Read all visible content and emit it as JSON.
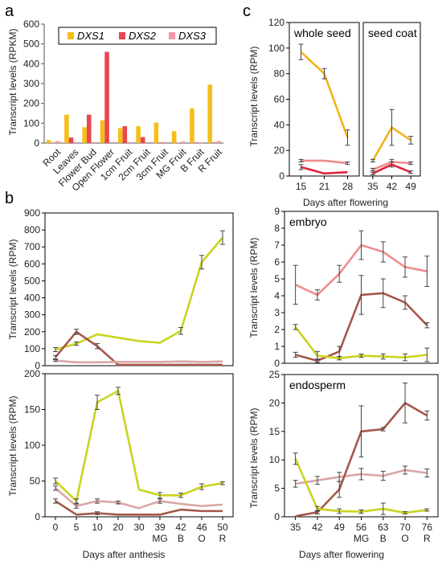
{
  "panel_labels": [
    "a",
    "b",
    "c"
  ],
  "colors": {
    "DXS1_a": "#F5BE19",
    "DXS2_a": "#E8474F",
    "DXS3_a": "#F29AA6",
    "yellow": "#C9D41E",
    "gold": "#F2B31B",
    "brown": "#A5584A",
    "pink": "#EF8C8C",
    "lightpink": "#D9A6A6",
    "red": "#E0243A"
  },
  "chart_data": [
    {
      "id": "a",
      "type": "bar",
      "ylabel": "Transcript levels (RPKM)",
      "ylim": [
        0,
        600
      ],
      "yticks": [
        0,
        100,
        200,
        300,
        400,
        500,
        600
      ],
      "legend_position": "top",
      "categories": [
        "Root",
        "Leaves",
        "Flower Bud",
        "Open Flower",
        "1cm Fruit",
        "2cm Fruit",
        "3cm Fruit",
        "MG Fruit",
        "B Fruit",
        "R Fruit"
      ],
      "series": [
        {
          "name": "DXS1",
          "color": "#F5BE19",
          "values": [
            15,
            143,
            80,
            115,
            75,
            85,
            103,
            60,
            175,
            295
          ]
        },
        {
          "name": "DXS2",
          "color": "#E8474F",
          "values": [
            2,
            28,
            143,
            460,
            85,
            30,
            3,
            1,
            3,
            3
          ]
        },
        {
          "name": "DXS3",
          "color": "#F29AA6",
          "values": [
            10,
            5,
            5,
            5,
            5,
            5,
            5,
            8,
            3,
            10
          ]
        }
      ]
    },
    {
      "id": "b_top",
      "type": "line",
      "ylim": [
        0,
        900
      ],
      "yticks": [
        0,
        100,
        200,
        300,
        400,
        500,
        600,
        700,
        800,
        900
      ],
      "x_labels": [
        "0",
        "5",
        "10",
        "20",
        "30",
        "39",
        "42",
        "46",
        "50"
      ],
      "x_sublabels": [
        "",
        "",
        "",
        "",
        "",
        "MG",
        "B",
        "O",
        "R"
      ],
      "series": [
        {
          "color": "#C9D41E",
          "values": [
            95,
            130,
            185,
            165,
            145,
            135,
            205,
            610,
            755
          ],
          "err": [
            12,
            10,
            0,
            0,
            0,
            0,
            20,
            40,
            40
          ]
        },
        {
          "color": "#A5584A",
          "values": [
            50,
            200,
            115,
            5,
            5,
            5,
            5,
            5,
            5
          ],
          "err": [
            10,
            15,
            15,
            0,
            0,
            0,
            0,
            0,
            0
          ]
        },
        {
          "color": "#D9A6A6",
          "values": [
            30,
            20,
            20,
            22,
            22,
            22,
            25,
            22,
            25
          ],
          "err": [
            5,
            0,
            0,
            0,
            0,
            0,
            0,
            0,
            0
          ]
        }
      ]
    },
    {
      "id": "b_bottom",
      "type": "line",
      "ylim": [
        0,
        200
      ],
      "yticks": [
        0,
        50,
        100,
        150,
        200
      ],
      "xlabel": "Days after anthesis",
      "x_labels": [
        "0",
        "5",
        "10",
        "20",
        "30",
        "39",
        "42",
        "46",
        "50"
      ],
      "x_sublabels": [
        "",
        "",
        "",
        "",
        "",
        "MG",
        "B",
        "O",
        "R"
      ],
      "series": [
        {
          "color": "#C9D41E",
          "values": [
            50,
            22,
            160,
            176,
            38,
            30,
            30,
            42,
            47
          ],
          "err": [
            4,
            3,
            10,
            5,
            0,
            4,
            3,
            4,
            2
          ]
        },
        {
          "color": "#A5584A",
          "values": [
            22,
            3,
            5,
            3,
            3,
            3,
            10,
            8,
            8
          ],
          "err": [
            3,
            0,
            2,
            0,
            0,
            0,
            0,
            0,
            0
          ]
        },
        {
          "color": "#D9A6A6",
          "values": [
            40,
            15,
            22,
            20,
            12,
            22,
            18,
            15,
            17
          ],
          "err": [
            3,
            3,
            3,
            2,
            0,
            3,
            0,
            0,
            0
          ]
        }
      ]
    },
    {
      "id": "c_whole",
      "type": "line",
      "title": "whole seed",
      "ylabel": "Transcript levels (RPM)",
      "ylim": [
        0,
        120
      ],
      "yticks": [
        0,
        20,
        40,
        60,
        80,
        100,
        120
      ],
      "x_labels": [
        "15",
        "21",
        "28"
      ],
      "series": [
        {
          "color": "#F2B31B",
          "values": [
            97,
            80,
            30
          ],
          "err": [
            6,
            4,
            6
          ]
        },
        {
          "color": "#EF8C8C",
          "values": [
            12,
            12,
            10
          ],
          "err": [
            1,
            0,
            1
          ]
        },
        {
          "color": "#E0243A",
          "values": [
            7,
            2,
            3
          ],
          "err": [
            2,
            0,
            0
          ]
        }
      ]
    },
    {
      "id": "c_coat",
      "type": "line",
      "title": "seed coat",
      "xlabel": "Days after flowering",
      "ylim": [
        0,
        120
      ],
      "x_labels": [
        "35",
        "42",
        "49"
      ],
      "series": [
        {
          "color": "#F2B31B",
          "values": [
            12,
            38,
            28
          ],
          "err": [
            1,
            14,
            3
          ]
        },
        {
          "color": "#EF8C8C",
          "values": [
            5,
            11,
            10
          ],
          "err": [
            1,
            2,
            1
          ]
        },
        {
          "color": "#E0243A",
          "values": [
            2,
            9,
            3
          ],
          "err": [
            1,
            2,
            1
          ]
        }
      ]
    },
    {
      "id": "c_embryo",
      "type": "line",
      "title": "embryo",
      "ylabel": "Transcript levels (RPM)",
      "ylim": [
        0,
        9
      ],
      "yticks": [
        0,
        1,
        2,
        3,
        4,
        5,
        6,
        7,
        8,
        9
      ],
      "x_labels": [
        "35",
        "42",
        "49",
        "56",
        "63",
        "70",
        "76"
      ],
      "x_sublabels": [
        "",
        "",
        "",
        "MG",
        "B",
        "O",
        "R"
      ],
      "series": [
        {
          "color": "#EF8C8C",
          "values": [
            4.65,
            4.05,
            5.3,
            7.0,
            6.6,
            5.7,
            5.45
          ],
          "err": [
            1.15,
            0.3,
            0.5,
            0.85,
            0.6,
            0.6,
            0.9
          ]
        },
        {
          "color": "#A5584A",
          "values": [
            0.5,
            0.15,
            0.7,
            4.05,
            4.15,
            3.6,
            2.25
          ],
          "err": [
            0.15,
            0.1,
            0.3,
            1.15,
            0.85,
            0.4,
            0.15
          ]
        },
        {
          "color": "#C9D41E",
          "values": [
            2.15,
            0.45,
            0.3,
            0.45,
            0.4,
            0.35,
            0.5
          ],
          "err": [
            0.15,
            0.25,
            0.1,
            0.1,
            0.15,
            0.2,
            0.4
          ]
        }
      ]
    },
    {
      "id": "c_endo",
      "type": "line",
      "title": "endosperm",
      "ylabel": "Transcript levels (RPM)",
      "xlabel": "Days after flowering",
      "ylim": [
        0,
        25
      ],
      "yticks": [
        0,
        5,
        10,
        15,
        20,
        25
      ],
      "x_labels": [
        "35",
        "42",
        "49",
        "56",
        "63",
        "70",
        "76"
      ],
      "x_sublabels": [
        "",
        "",
        "",
        "MG",
        "B",
        "O",
        "R"
      ],
      "series": [
        {
          "color": "#D9A6A6",
          "values": [
            5.8,
            6.4,
            7.0,
            7.5,
            7.2,
            8.2,
            7.7
          ],
          "err": [
            0.6,
            0.7,
            0.8,
            1.0,
            0.8,
            0.7,
            0.7
          ]
        },
        {
          "color": "#A5584A",
          "values": [
            0.1,
            0.8,
            4.8,
            15.0,
            15.4,
            20.0,
            17.8
          ],
          "err": [
            0,
            0.3,
            1.4,
            4.5,
            0.3,
            3.5,
            0.8
          ]
        },
        {
          "color": "#C9D41E",
          "values": [
            10.2,
            1.4,
            1.0,
            0.9,
            1.4,
            0.7,
            1.2
          ],
          "err": [
            1.0,
            0.4,
            0.4,
            0.3,
            1.0,
            0.2,
            0.2
          ]
        }
      ]
    }
  ]
}
